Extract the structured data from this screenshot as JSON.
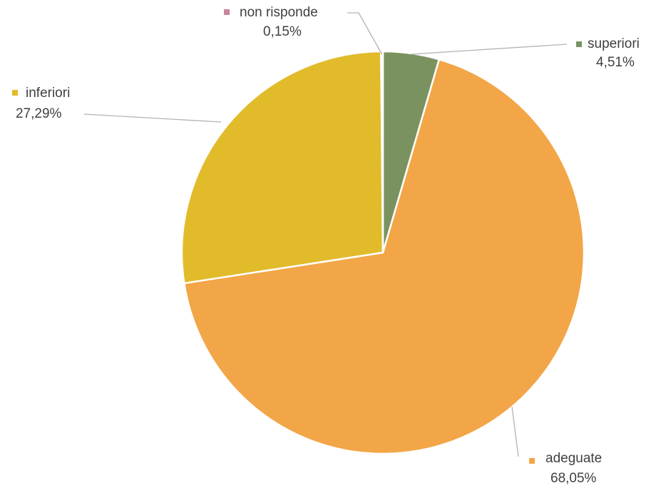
{
  "chart_data": {
    "type": "pie",
    "title": "",
    "slices": [
      {
        "label": "superiori",
        "value": 4.51,
        "value_label": "4,51%",
        "color": "#7a9260"
      },
      {
        "label": "adeguate",
        "value": 68.05,
        "value_label": "68,05%",
        "color": "#f2a647"
      },
      {
        "label": "inferiori",
        "value": 27.29,
        "value_label": "27,29%",
        "color": "#e2bb2b"
      },
      {
        "label": "non risponde",
        "value": 0.15,
        "value_label": "0,15%",
        "color": "#c9869a"
      }
    ],
    "legend": "none",
    "start_angle": "12 o'clock",
    "direction": "clockwise"
  }
}
